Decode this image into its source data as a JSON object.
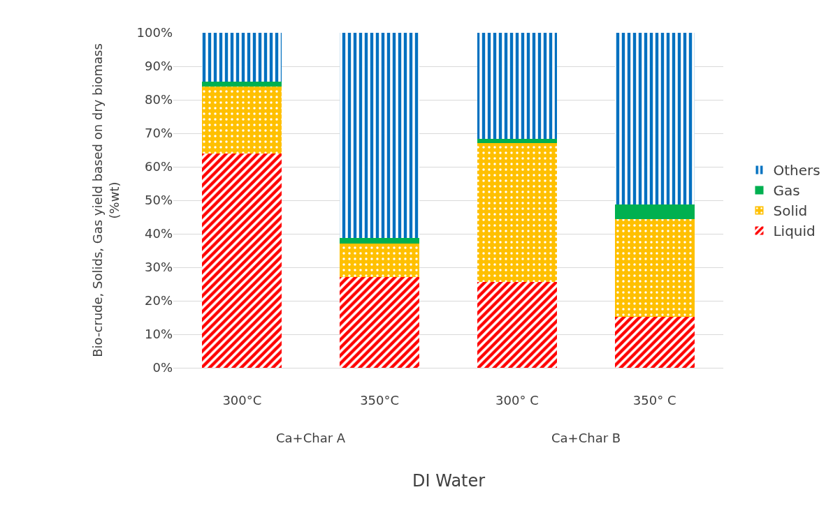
{
  "chart_data": {
    "type": "bar",
    "stacked": true,
    "xlabel": "DI Water",
    "ylabel": "Bio-crude, Solids, Gas yield based on dry biomass\n(%wt)",
    "categories": [
      "300°C",
      "350°C",
      "300° C",
      "350° C"
    ],
    "annotations": [
      "Ca+Char A",
      "Ca+Char B"
    ],
    "series": [
      {
        "name": "Liquid",
        "color": "#ff0000",
        "values": [
          64,
          27,
          25.6,
          15.3
        ]
      },
      {
        "name": "Solid",
        "color": "#ffc000",
        "values": [
          20,
          10,
          41.4,
          29
        ]
      },
      {
        "name": "Gas",
        "color": "#00b050",
        "values": [
          1.5,
          1.8,
          1.3,
          4.5
        ]
      },
      {
        "name": "Others",
        "color": "#0070c0",
        "values": [
          14.5,
          61.2,
          31.7,
          51.2
        ]
      }
    ],
    "ylim": [
      0,
      100
    ],
    "yticks": [
      {
        "value": 0,
        "label": "0%"
      },
      {
        "value": 10,
        "label": "10%"
      },
      {
        "value": 20,
        "label": "20%"
      },
      {
        "value": 30,
        "label": "30%"
      },
      {
        "value": 40,
        "label": "40%"
      },
      {
        "value": 50,
        "label": "50%"
      },
      {
        "value": 60,
        "label": "60%"
      },
      {
        "value": 70,
        "label": "70%"
      },
      {
        "value": 80,
        "label": "80%"
      },
      {
        "value": 90,
        "label": "90%"
      },
      {
        "value": 100,
        "label": "100%"
      }
    ],
    "grid": "y",
    "legend": "right"
  }
}
